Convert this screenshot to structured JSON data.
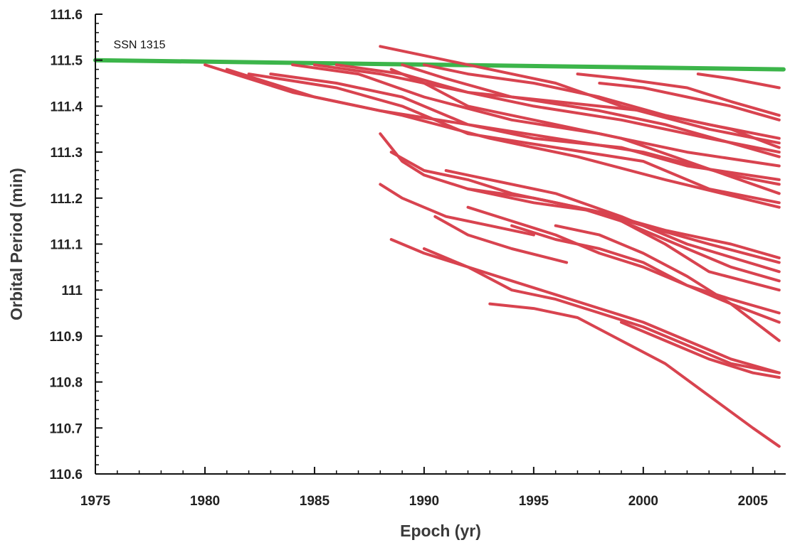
{
  "chart_data": {
    "type": "line",
    "title": "",
    "xlabel": "Epoch (yr)",
    "ylabel": "Orbital Period (min)",
    "xlim": [
      1975,
      2006.5
    ],
    "ylim": [
      110.6,
      111.6
    ],
    "xticks": [
      1975,
      1980,
      1985,
      1990,
      1995,
      2000,
      2005
    ],
    "xtick_labels": [
      "1975",
      "1980",
      "1985",
      "1990",
      "1995",
      "2000",
      "2005"
    ],
    "yticks": [
      110.6,
      110.7,
      110.8,
      110.9,
      111.0,
      111.1,
      111.2,
      111.3,
      111.4,
      111.5,
      111.6
    ],
    "ytick_labels": [
      "110.6",
      "110.7",
      "110.8",
      "110.9",
      "111",
      "111.1",
      "111.2",
      "111.3",
      "111.4",
      "111.5",
      "111.6"
    ],
    "grid": false,
    "colors": {
      "reference": "#3cb54a",
      "debris": "#d8434f",
      "axis": "#111111"
    },
    "annotations": [
      {
        "text": "SSN 1315",
        "x": 1975.7,
        "y": 111.52
      }
    ],
    "series": [
      {
        "name": "SSN 1315",
        "color": "#3cb54a",
        "x": [
          1975,
          2006.4
        ],
        "y": [
          111.5,
          111.48
        ]
      },
      {
        "x": [
          1980,
          1984,
          1988,
          1992,
          1996,
          2000,
          2004,
          2006.2
        ],
        "y": [
          111.49,
          111.43,
          111.39,
          111.36,
          111.33,
          111.3,
          111.25,
          111.23
        ]
      },
      {
        "x": [
          1981,
          1985,
          1989,
          1993,
          1997,
          2001,
          2006.2
        ],
        "y": [
          111.48,
          111.42,
          111.38,
          111.33,
          111.29,
          111.24,
          111.18
        ]
      },
      {
        "x": [
          1982,
          1986,
          1989,
          1992,
          1996,
          2000,
          2003,
          2006.2
        ],
        "y": [
          111.47,
          111.44,
          111.4,
          111.34,
          111.31,
          111.28,
          111.22,
          111.19
        ]
      },
      {
        "x": [
          1983,
          1986,
          1989,
          1992,
          1995,
          1999,
          2002,
          2006.2
        ],
        "y": [
          111.47,
          111.45,
          111.42,
          111.36,
          111.33,
          111.31,
          111.27,
          111.24
        ]
      },
      {
        "x": [
          1984,
          1987,
          1990,
          1994,
          1998,
          2002,
          2006.2
        ],
        "y": [
          111.49,
          111.47,
          111.42,
          111.37,
          111.34,
          111.3,
          111.27
        ]
      },
      {
        "x": [
          1985,
          1988,
          1991,
          1995,
          1999,
          2003,
          2006.2
        ],
        "y": [
          111.49,
          111.47,
          111.44,
          111.4,
          111.37,
          111.33,
          111.3
        ]
      },
      {
        "x": [
          1986,
          1989,
          1992,
          1996,
          2000,
          2003,
          2006.2
        ],
        "y": [
          111.49,
          111.47,
          111.43,
          111.41,
          111.39,
          111.36,
          111.33
        ]
      },
      {
        "x": [
          1988.5,
          1990,
          1992,
          1995,
          1999,
          2002,
          2006.2
        ],
        "y": [
          111.48,
          111.45,
          111.4,
          111.37,
          111.33,
          111.28,
          111.21
        ]
      },
      {
        "x": [
          1989,
          1991,
          1994,
          1998,
          2001,
          2004,
          2006.2
        ],
        "y": [
          111.49,
          111.46,
          111.42,
          111.39,
          111.36,
          111.32,
          111.29
        ]
      },
      {
        "x": [
          1988,
          1990,
          1993,
          1996,
          1999,
          2003,
          2006.2
        ],
        "y": [
          111.53,
          111.51,
          111.48,
          111.45,
          111.4,
          111.35,
          111.32
        ]
      },
      {
        "x": [
          1990,
          1992,
          1995,
          1998,
          2001,
          2004,
          2006.2
        ],
        "y": [
          111.49,
          111.47,
          111.45,
          111.42,
          111.38,
          111.35,
          111.31
        ]
      },
      {
        "x": [
          1997,
          1999,
          2002,
          2004,
          2006.2
        ],
        "y": [
          111.47,
          111.46,
          111.44,
          111.41,
          111.38
        ]
      },
      {
        "x": [
          1998,
          2000,
          2002,
          2004,
          2006.2
        ],
        "y": [
          111.45,
          111.44,
          111.42,
          111.4,
          111.37
        ]
      },
      {
        "x": [
          2002.5,
          2004,
          2006.2
        ],
        "y": [
          111.47,
          111.46,
          111.44
        ]
      },
      {
        "x": [
          1988,
          1989,
          1990,
          1992,
          1995,
          1998,
          2001,
          2004,
          2006.2
        ],
        "y": [
          111.34,
          111.28,
          111.25,
          111.22,
          111.19,
          111.17,
          111.13,
          111.1,
          111.07
        ]
      },
      {
        "x": [
          1988.5,
          1990,
          1992,
          1994,
          1997,
          2000,
          2003,
          2006.2
        ],
        "y": [
          111.3,
          111.26,
          111.24,
          111.21,
          111.18,
          111.14,
          111.1,
          111.06
        ]
      },
      {
        "x": [
          1991,
          1993,
          1996,
          1999,
          2002,
          2006.2
        ],
        "y": [
          111.26,
          111.24,
          111.21,
          111.16,
          111.1,
          111.04
        ]
      },
      {
        "x": [
          1992,
          1995,
          1998,
          2001,
          2004,
          2006.2
        ],
        "y": [
          111.22,
          111.2,
          111.17,
          111.11,
          111.05,
          111.02
        ]
      },
      {
        "x": [
          1988,
          1989,
          1991,
          1993,
          1995
        ],
        "y": [
          111.23,
          111.2,
          111.16,
          111.14,
          111.12
        ]
      },
      {
        "x": [
          1990.5,
          1992,
          1994,
          1996.5
        ],
        "y": [
          111.16,
          111.12,
          111.09,
          111.06
        ]
      },
      {
        "x": [
          1992,
          1994,
          1996,
          1998,
          2000,
          2002,
          2004,
          2006.2
        ],
        "y": [
          111.18,
          111.15,
          111.12,
          111.08,
          111.05,
          111.01,
          110.98,
          110.95
        ]
      },
      {
        "x": [
          1994,
          1996,
          1998,
          2000,
          2002,
          2004,
          2006.2
        ],
        "y": [
          111.14,
          111.11,
          111.09,
          111.06,
          111.01,
          110.97,
          110.93
        ]
      },
      {
        "x": [
          1996,
          1998,
          2000,
          2002,
          2004,
          2006.2
        ],
        "y": [
          111.14,
          111.12,
          111.08,
          111.03,
          110.97,
          110.89
        ]
      },
      {
        "x": [
          1995,
          1997,
          1999,
          2001,
          2003,
          2006.2
        ],
        "y": [
          111.2,
          111.18,
          111.15,
          111.1,
          111.04,
          111.0
        ]
      },
      {
        "x": [
          1988.5,
          1990,
          1992,
          1994,
          1996,
          1998,
          2000,
          2002,
          2004,
          2006.2
        ],
        "y": [
          111.11,
          111.08,
          111.05,
          111.0,
          110.98,
          110.95,
          110.92,
          110.88,
          110.84,
          110.82
        ]
      },
      {
        "x": [
          1990,
          1992,
          1994,
          1996,
          1998,
          2000,
          2002,
          2004,
          2006.2
        ],
        "y": [
          111.09,
          111.05,
          111.02,
          110.99,
          110.96,
          110.93,
          110.89,
          110.85,
          110.82
        ]
      },
      {
        "x": [
          1999,
          2001,
          2003,
          2005,
          2006.2
        ],
        "y": [
          110.93,
          110.89,
          110.85,
          110.82,
          110.81
        ]
      },
      {
        "x": [
          1993,
          1995,
          1997,
          1999,
          2001,
          2003,
          2005,
          2006.2
        ],
        "y": [
          110.97,
          110.96,
          110.94,
          110.89,
          110.84,
          110.77,
          110.7,
          110.66
        ]
      }
    ]
  }
}
